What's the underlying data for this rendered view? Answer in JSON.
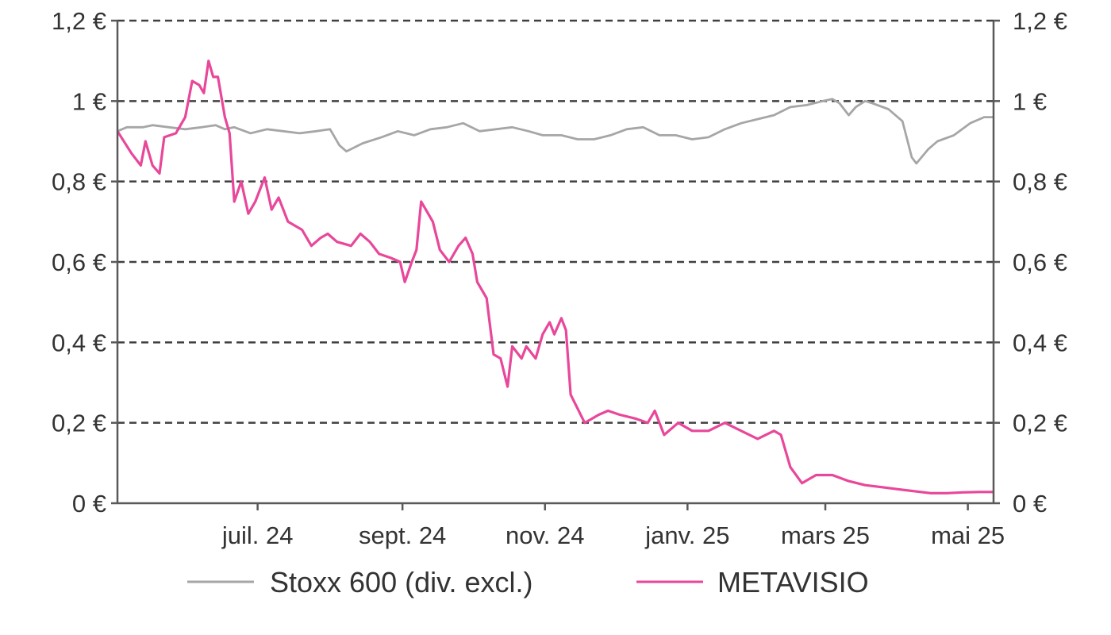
{
  "chart_data": {
    "type": "line",
    "title": "",
    "xlabel": "",
    "ylabel": "",
    "x_range": [
      "2024-05-02",
      "2025-05-12"
    ],
    "ylim": [
      0,
      1.2
    ],
    "y_ticks": [
      {
        "value": 0,
        "label": "0 €"
      },
      {
        "value": 0.2,
        "label": "0,2 €"
      },
      {
        "value": 0.4,
        "label": "0,4 €"
      },
      {
        "value": 0.6,
        "label": "0,6 €"
      },
      {
        "value": 0.8,
        "label": "0,8 €"
      },
      {
        "value": 1.0,
        "label": "1 €"
      },
      {
        "value": 1.2,
        "label": "1,2 €"
      }
    ],
    "x_ticks": [
      {
        "date": "2024-07-01",
        "label": "juil. 24"
      },
      {
        "date": "2024-09-01",
        "label": "sept. 24"
      },
      {
        "date": "2024-11-01",
        "label": "nov. 24"
      },
      {
        "date": "2025-01-01",
        "label": "janv. 25"
      },
      {
        "date": "2025-03-01",
        "label": "mars 25"
      },
      {
        "date": "2025-05-01",
        "label": "mai 25"
      }
    ],
    "grid": "horizontal-dashed",
    "legend_position": "bottom",
    "series": [
      {
        "name": "Stoxx 600 (div. excl.)",
        "color": "#a6a6a6",
        "points": [
          [
            "2024-05-02",
            0.925
          ],
          [
            "2024-05-06",
            0.935
          ],
          [
            "2024-05-13",
            0.935
          ],
          [
            "2024-05-17",
            0.94
          ],
          [
            "2024-05-24",
            0.935
          ],
          [
            "2024-05-31",
            0.93
          ],
          [
            "2024-06-07",
            0.935
          ],
          [
            "2024-06-13",
            0.94
          ],
          [
            "2024-06-17",
            0.93
          ],
          [
            "2024-06-21",
            0.935
          ],
          [
            "2024-06-28",
            0.92
          ],
          [
            "2024-07-05",
            0.93
          ],
          [
            "2024-07-12",
            0.925
          ],
          [
            "2024-07-19",
            0.92
          ],
          [
            "2024-07-26",
            0.925
          ],
          [
            "2024-08-01",
            0.93
          ],
          [
            "2024-08-05",
            0.89
          ],
          [
            "2024-08-08",
            0.875
          ],
          [
            "2024-08-15",
            0.895
          ],
          [
            "2024-08-23",
            0.91
          ],
          [
            "2024-08-30",
            0.925
          ],
          [
            "2024-09-06",
            0.915
          ],
          [
            "2024-09-13",
            0.93
          ],
          [
            "2024-09-20",
            0.935
          ],
          [
            "2024-09-27",
            0.945
          ],
          [
            "2024-10-04",
            0.925
          ],
          [
            "2024-10-11",
            0.93
          ],
          [
            "2024-10-18",
            0.935
          ],
          [
            "2024-10-25",
            0.925
          ],
          [
            "2024-10-31",
            0.915
          ],
          [
            "2024-11-08",
            0.915
          ],
          [
            "2024-11-15",
            0.905
          ],
          [
            "2024-11-22",
            0.905
          ],
          [
            "2024-11-29",
            0.915
          ],
          [
            "2024-12-06",
            0.93
          ],
          [
            "2024-12-13",
            0.935
          ],
          [
            "2024-12-20",
            0.915
          ],
          [
            "2024-12-27",
            0.915
          ],
          [
            "2025-01-03",
            0.905
          ],
          [
            "2025-01-10",
            0.91
          ],
          [
            "2025-01-17",
            0.93
          ],
          [
            "2025-01-24",
            0.945
          ],
          [
            "2025-01-31",
            0.955
          ],
          [
            "2025-02-07",
            0.965
          ],
          [
            "2025-02-14",
            0.985
          ],
          [
            "2025-02-21",
            0.99
          ],
          [
            "2025-02-28",
            1.0
          ],
          [
            "2025-03-04",
            1.005
          ],
          [
            "2025-03-07",
            0.995
          ],
          [
            "2025-03-11",
            0.965
          ],
          [
            "2025-03-14",
            0.985
          ],
          [
            "2025-03-18",
            1.0
          ],
          [
            "2025-03-21",
            0.995
          ],
          [
            "2025-03-28",
            0.98
          ],
          [
            "2025-04-03",
            0.95
          ],
          [
            "2025-04-07",
            0.86
          ],
          [
            "2025-04-09",
            0.845
          ],
          [
            "2025-04-14",
            0.88
          ],
          [
            "2025-04-18",
            0.9
          ],
          [
            "2025-04-25",
            0.915
          ],
          [
            "2025-05-02",
            0.945
          ],
          [
            "2025-05-08",
            0.96
          ],
          [
            "2025-05-12",
            0.96
          ]
        ]
      },
      {
        "name": "METAVISIO",
        "color": "#e8479a",
        "points": [
          [
            "2024-05-02",
            0.925
          ],
          [
            "2024-05-08",
            0.87
          ],
          [
            "2024-05-12",
            0.84
          ],
          [
            "2024-05-14",
            0.9
          ],
          [
            "2024-05-17",
            0.84
          ],
          [
            "2024-05-20",
            0.82
          ],
          [
            "2024-05-22",
            0.91
          ],
          [
            "2024-05-27",
            0.92
          ],
          [
            "2024-05-31",
            0.96
          ],
          [
            "2024-06-03",
            1.05
          ],
          [
            "2024-06-06",
            1.04
          ],
          [
            "2024-06-08",
            1.02
          ],
          [
            "2024-06-10",
            1.1
          ],
          [
            "2024-06-12",
            1.06
          ],
          [
            "2024-06-14",
            1.06
          ],
          [
            "2024-06-17",
            0.96
          ],
          [
            "2024-06-19",
            0.92
          ],
          [
            "2024-06-21",
            0.75
          ],
          [
            "2024-06-24",
            0.8
          ],
          [
            "2024-06-27",
            0.72
          ],
          [
            "2024-06-30",
            0.75
          ],
          [
            "2024-07-04",
            0.81
          ],
          [
            "2024-07-07",
            0.73
          ],
          [
            "2024-07-10",
            0.76
          ],
          [
            "2024-07-14",
            0.7
          ],
          [
            "2024-07-20",
            0.68
          ],
          [
            "2024-07-24",
            0.64
          ],
          [
            "2024-07-28",
            0.66
          ],
          [
            "2024-07-31",
            0.67
          ],
          [
            "2024-08-04",
            0.65
          ],
          [
            "2024-08-10",
            0.64
          ],
          [
            "2024-08-14",
            0.67
          ],
          [
            "2024-08-18",
            0.65
          ],
          [
            "2024-08-22",
            0.62
          ],
          [
            "2024-08-27",
            0.61
          ],
          [
            "2024-08-31",
            0.6
          ],
          [
            "2024-09-02",
            0.55
          ],
          [
            "2024-09-05",
            0.6
          ],
          [
            "2024-09-07",
            0.63
          ],
          [
            "2024-09-09",
            0.75
          ],
          [
            "2024-09-11",
            0.73
          ],
          [
            "2024-09-14",
            0.7
          ],
          [
            "2024-09-17",
            0.63
          ],
          [
            "2024-09-21",
            0.6
          ],
          [
            "2024-09-25",
            0.64
          ],
          [
            "2024-09-28",
            0.66
          ],
          [
            "2024-10-01",
            0.62
          ],
          [
            "2024-10-03",
            0.55
          ],
          [
            "2024-10-07",
            0.51
          ],
          [
            "2024-10-10",
            0.37
          ],
          [
            "2024-10-13",
            0.36
          ],
          [
            "2024-10-16",
            0.29
          ],
          [
            "2024-10-18",
            0.39
          ],
          [
            "2024-10-22",
            0.36
          ],
          [
            "2024-10-24",
            0.39
          ],
          [
            "2024-10-28",
            0.36
          ],
          [
            "2024-10-31",
            0.42
          ],
          [
            "2024-11-03",
            0.45
          ],
          [
            "2024-11-05",
            0.42
          ],
          [
            "2024-11-08",
            0.46
          ],
          [
            "2024-11-10",
            0.43
          ],
          [
            "2024-11-12",
            0.27
          ],
          [
            "2024-11-18",
            0.2
          ],
          [
            "2024-11-24",
            0.22
          ],
          [
            "2024-11-28",
            0.23
          ],
          [
            "2024-12-03",
            0.22
          ],
          [
            "2024-12-10",
            0.21
          ],
          [
            "2024-12-15",
            0.2
          ],
          [
            "2024-12-18",
            0.23
          ],
          [
            "2024-12-22",
            0.17
          ],
          [
            "2024-12-28",
            0.2
          ],
          [
            "2025-01-03",
            0.18
          ],
          [
            "2025-01-10",
            0.18
          ],
          [
            "2025-01-17",
            0.2
          ],
          [
            "2025-01-24",
            0.18
          ],
          [
            "2025-01-31",
            0.16
          ],
          [
            "2025-02-07",
            0.18
          ],
          [
            "2025-02-10",
            0.17
          ],
          [
            "2025-02-14",
            0.09
          ],
          [
            "2025-02-19",
            0.05
          ],
          [
            "2025-02-25",
            0.07
          ],
          [
            "2025-03-04",
            0.07
          ],
          [
            "2025-03-11",
            0.055
          ],
          [
            "2025-03-18",
            0.045
          ],
          [
            "2025-03-25",
            0.04
          ],
          [
            "2025-04-01",
            0.035
          ],
          [
            "2025-04-08",
            0.03
          ],
          [
            "2025-04-15",
            0.025
          ],
          [
            "2025-04-22",
            0.025
          ],
          [
            "2025-04-29",
            0.027
          ],
          [
            "2025-05-06",
            0.028
          ],
          [
            "2025-05-12",
            0.028
          ]
        ]
      }
    ]
  }
}
